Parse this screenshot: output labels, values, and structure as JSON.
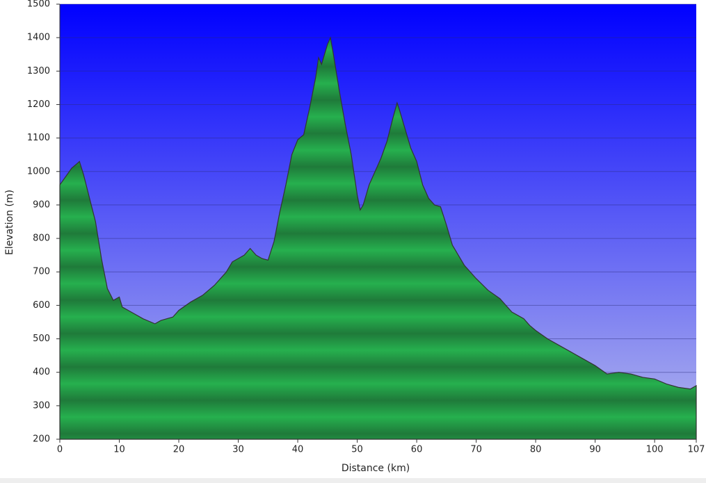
{
  "chart_data": {
    "type": "area",
    "x_label": "Distance  (km)",
    "y_label": "Elevation (m)",
    "x": [
      0,
      1,
      2,
      3,
      3.3,
      4,
      5,
      6,
      7,
      8,
      9,
      10,
      10.5,
      12,
      14,
      16,
      17,
      19,
      20,
      22,
      24,
      26,
      28,
      29,
      30,
      31,
      32,
      33,
      34,
      35,
      36,
      37,
      38,
      39,
      40,
      41,
      42,
      43,
      43.5,
      44,
      45,
      45.5,
      46,
      47,
      48,
      49,
      50,
      50.5,
      51,
      52,
      53,
      54,
      55,
      56,
      56.7,
      57,
      58,
      59,
      60,
      61,
      62,
      63,
      64,
      65,
      66,
      67,
      68,
      70,
      72,
      74,
      75,
      76,
      77,
      78,
      79,
      80,
      82,
      84,
      86,
      88,
      90,
      92,
      94,
      96,
      98,
      100,
      102,
      104,
      106,
      107
    ],
    "series": [
      {
        "name": "Elevation",
        "color": "#22b14c",
        "values": [
          960,
          985,
          1010,
          1025,
          1030,
          990,
          920,
          850,
          740,
          650,
          615,
          625,
          595,
          580,
          560,
          545,
          555,
          565,
          585,
          610,
          630,
          660,
          700,
          730,
          740,
          750,
          770,
          750,
          740,
          735,
          790,
          880,
          960,
          1050,
          1095,
          1110,
          1190,
          1280,
          1340,
          1320,
          1380,
          1400,
          1350,
          1240,
          1140,
          1050,
          930,
          885,
          900,
          960,
          1000,
          1040,
          1090,
          1160,
          1205,
          1190,
          1130,
          1070,
          1030,
          960,
          920,
          900,
          895,
          840,
          780,
          750,
          720,
          680,
          645,
          620,
          600,
          580,
          570,
          560,
          540,
          525,
          500,
          480,
          460,
          440,
          420,
          395,
          400,
          395,
          385,
          380,
          365,
          355,
          350,
          360
        ]
      }
    ],
    "xlim": [
      0,
      107
    ],
    "xticks": [
      0,
      10,
      20,
      30,
      40,
      50,
      60,
      70,
      80,
      90,
      100,
      107
    ],
    "ylim": [
      200,
      1500
    ],
    "yticks": [
      200,
      300,
      400,
      500,
      600,
      700,
      800,
      900,
      1000,
      1100,
      1200,
      1300,
      1400,
      1500
    ],
    "grid": true
  }
}
